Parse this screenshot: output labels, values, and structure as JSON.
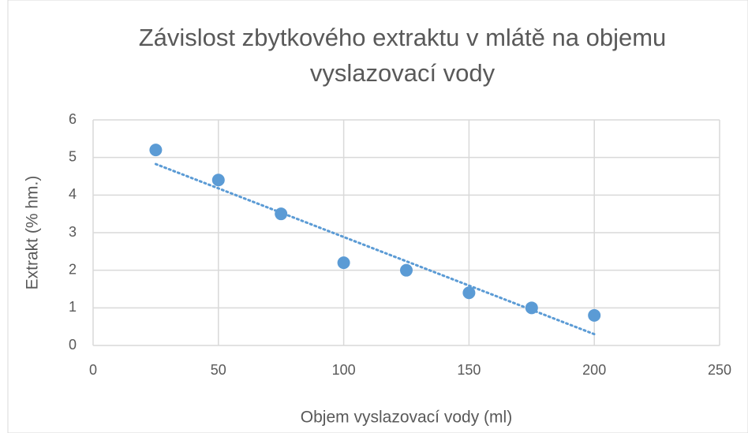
{
  "chart_data": {
    "type": "scatter",
    "title": [
      "Závislost zbytkového extraktu v mlátě na objemu",
      "vyslazovací vody"
    ],
    "xlabel": "Objem vyslazovací vody (ml)",
    "ylabel": "Extrakt (% hm.)",
    "series": [
      {
        "name": "Extrakt",
        "color": "#5b9bd5",
        "x": [
          25,
          50,
          75,
          100,
          125,
          150,
          175,
          200
        ],
        "values": [
          5.2,
          4.4,
          3.5,
          2.2,
          2.0,
          1.4,
          1.0,
          0.8
        ]
      }
    ],
    "trendline": "linear",
    "xlim": [
      0,
      250
    ],
    "xticks": [
      0,
      50,
      100,
      150,
      200,
      250
    ],
    "ylim": [
      0,
      6
    ],
    "yticks": [
      0,
      1,
      2,
      3,
      4,
      5,
      6
    ],
    "grid": true
  }
}
